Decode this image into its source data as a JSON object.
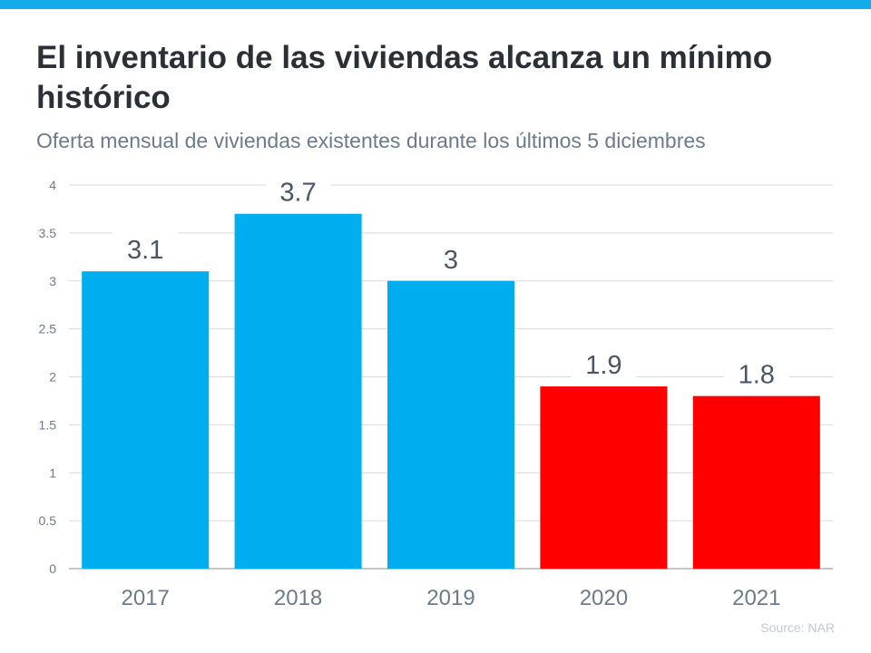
{
  "header": {
    "title": "El inventario de las viviendas alcanza un mínimo histórico",
    "subtitle": "Oferta mensual de viviendas existentes durante los últimos 5 diciembres"
  },
  "source": "Source: NAR",
  "colors": {
    "topbar": "#14ABEB",
    "highlight_blue": "#00ADEF",
    "highlight_red": "#FF0000"
  },
  "chart_data": {
    "type": "bar",
    "title": "",
    "xlabel": "",
    "ylabel": "",
    "categories": [
      "2017",
      "2018",
      "2019",
      "2020",
      "2021"
    ],
    "values": [
      3.1,
      3.7,
      3,
      1.9,
      1.8
    ],
    "data_labels": [
      "3.1",
      "3.7",
      "3",
      "1.9",
      "1.8"
    ],
    "bar_colors": [
      "#00ADEF",
      "#00ADEF",
      "#00ADEF",
      "#FF0000",
      "#FF0000"
    ],
    "ylim": [
      0,
      4
    ],
    "yticks": [
      "0",
      "0.5",
      "1",
      "1.5",
      "2",
      "2.5",
      "3",
      "3.5",
      "4"
    ],
    "grid": true,
    "legend": "none"
  }
}
